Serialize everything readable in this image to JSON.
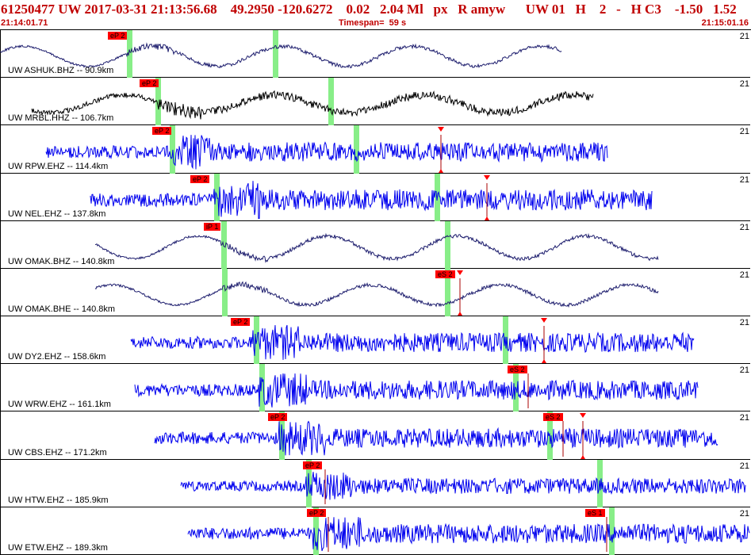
{
  "header": {
    "title": "61250477 UW 2017-03-31 21:13:56.68    49.2950 -120.6272    0.02   2.04 Ml   px   R amyw      UW 01   H    2   -   H C3    -1.50   1.52",
    "start_time": "21:14:01.71",
    "timespan": "Timespan=  59 s",
    "end_time": "21:15:01.16"
  },
  "colors": {
    "header_text": "#c00000",
    "trace_blue": "#0000ee",
    "trace_navy": "#1e1e6e",
    "trace_black": "#000000",
    "pick_box": "#ff0000",
    "phase_window": "#88ee88"
  },
  "rows": [
    {
      "label": "UW ASHUK.BHZ -- 90.9km",
      "count": "21",
      "trace": "trace_navy",
      "kind": "slow",
      "data_start": 0,
      "data_end": 708,
      "onset": 160,
      "amp": 14,
      "picks": [
        {
          "text": "eP 2",
          "x": 136
        }
      ],
      "green": [
        160,
        344
      ],
      "pick_lines": [],
      "s_marks": []
    },
    {
      "label": "UW MRBL.HHZ -- 106.7km",
      "count": "21",
      "trace": "trace_black",
      "kind": "mixed",
      "data_start": 40,
      "data_end": 748,
      "onset": 196,
      "amp": 16,
      "picks": [
        {
          "text": "eP 2",
          "x": 176
        }
      ],
      "green": [
        196,
        414
      ],
      "pick_lines": [],
      "s_marks": []
    },
    {
      "label": "UW RPW.EHZ -- 114.4km",
      "count": "21",
      "trace": "trace_blue",
      "kind": "fast",
      "data_start": 58,
      "data_end": 766,
      "onset": 214,
      "amp": 22,
      "picks": [
        {
          "text": "eP 2",
          "x": 192
        }
      ],
      "green": [
        214,
        446
      ],
      "pick_lines": [
        556
      ],
      "s_marks": [
        556
      ]
    },
    {
      "label": "UW NEL.EHZ -- 137.8km",
      "count": "21",
      "trace": "trace_blue",
      "kind": "fast",
      "data_start": 114,
      "data_end": 822,
      "onset": 270,
      "amp": 24,
      "picks": [
        {
          "text": "eP 2",
          "x": 240
        }
      ],
      "green": [
        270,
        548
      ],
      "pick_lines": [
        614
      ],
      "s_marks": [
        614
      ]
    },
    {
      "label": "UW OMAK.BHZ -- 140.8km",
      "count": "21",
      "trace": "trace_navy",
      "kind": "slow",
      "data_start": 120,
      "data_end": 830,
      "onset": 279,
      "amp": 16,
      "picks": [
        {
          "text": "iP 1",
          "x": 257
        }
      ],
      "green": [
        279,
        561
      ],
      "pick_lines": [],
      "s_marks": []
    },
    {
      "label": "UW OMAK.BHE -- 140.8km",
      "count": "21",
      "trace": "trace_navy",
      "kind": "slow",
      "data_start": 120,
      "data_end": 830,
      "onset": 280,
      "amp": 14,
      "picks": [
        {
          "text": "eS 2",
          "x": 549
        }
      ],
      "green": [
        280,
        561
      ],
      "pick_lines": [
        580
      ],
      "s_marks": [
        580
      ]
    },
    {
      "label": "UW DY2.EHZ -- 158.6km",
      "count": "21",
      "trace": "trace_blue",
      "kind": "fast",
      "data_start": 165,
      "data_end": 875,
      "onset": 318,
      "amp": 22,
      "picks": [
        {
          "text": "eP 2",
          "x": 291
        }
      ],
      "green": [
        320,
        634
      ],
      "pick_lines": [
        686
      ],
      "s_marks": [
        686
      ]
    },
    {
      "label": "UW WRW.EHZ -- 161.1km",
      "count": "21",
      "trace": "trace_blue",
      "kind": "fast",
      "data_start": 170,
      "data_end": 880,
      "onset": 327,
      "amp": 22,
      "picks": [
        {
          "text": "eS 2",
          "x": 640
        }
      ],
      "green": [
        327,
        647
      ],
      "pick_lines": [
        666
      ],
      "s_marks": []
    },
    {
      "label": "UW CBS.EHZ -- 171.2km",
      "count": "21",
      "trace": "trace_blue",
      "kind": "fast",
      "data_start": 195,
      "data_end": 905,
      "onset": 352,
      "amp": 22,
      "picks": [
        {
          "text": "eP 2",
          "x": 338
        },
        {
          "text": "eS 2",
          "x": 685
        }
      ],
      "green": [
        352,
        690
      ],
      "pick_lines": [
        710,
        735
      ],
      "s_marks": [
        735
      ]
    },
    {
      "label": "UW HTW.EHZ -- 185.9km",
      "count": "21",
      "trace": "trace_blue",
      "kind": "fast",
      "data_start": 228,
      "data_end": 940,
      "onset": 386,
      "amp": 18,
      "picks": [
        {
          "text": "eP 2",
          "x": 382
        }
      ],
      "green": [
        386,
        753
      ],
      "pick_lines": [
        410
      ],
      "s_marks": []
    },
    {
      "label": "UW ETW.EHZ -- 189.3km",
      "count": "21",
      "trace": "trace_blue",
      "kind": "fast",
      "data_start": 237,
      "data_end": 945,
      "onset": 395,
      "amp": 22,
      "picks": [
        {
          "text": "eP 2",
          "x": 387
        },
        {
          "text": "eS 1",
          "x": 738
        }
      ],
      "green": [
        395,
        768
      ],
      "pick_lines": [
        414,
        765
      ],
      "s_marks": []
    }
  ]
}
